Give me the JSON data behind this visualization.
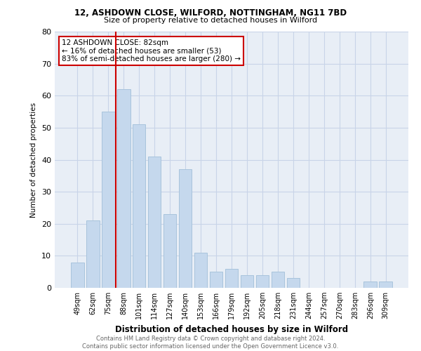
{
  "title1": "12, ASHDOWN CLOSE, WILFORD, NOTTINGHAM, NG11 7BD",
  "title2": "Size of property relative to detached houses in Wilford",
  "xlabel": "Distribution of detached houses by size in Wilford",
  "ylabel": "Number of detached properties",
  "categories": [
    "49sqm",
    "62sqm",
    "75sqm",
    "88sqm",
    "101sqm",
    "114sqm",
    "127sqm",
    "140sqm",
    "153sqm",
    "166sqm",
    "179sqm",
    "192sqm",
    "205sqm",
    "218sqm",
    "231sqm",
    "244sqm",
    "257sqm",
    "270sqm",
    "283sqm",
    "296sqm",
    "309sqm"
  ],
  "values": [
    8,
    21,
    55,
    62,
    51,
    41,
    23,
    37,
    11,
    5,
    6,
    4,
    4,
    5,
    3,
    0,
    0,
    0,
    0,
    2,
    2
  ],
  "bar_color": "#c5d8ed",
  "bar_edgecolor": "#a8c4dc",
  "vline_color": "#cc0000",
  "vline_index": 2.5,
  "annotation_text": "12 ASHDOWN CLOSE: 82sqm\n← 16% of detached houses are smaller (53)\n83% of semi-detached houses are larger (280) →",
  "annotation_box_edgecolor": "#cc0000",
  "ylim": [
    0,
    80
  ],
  "yticks": [
    0,
    10,
    20,
    30,
    40,
    50,
    60,
    70,
    80
  ],
  "footnote": "Contains HM Land Registry data © Crown copyright and database right 2024.\nContains public sector information licensed under the Open Government Licence v3.0.",
  "grid_color": "#c8d4e8",
  "background_color": "#e8eef6"
}
